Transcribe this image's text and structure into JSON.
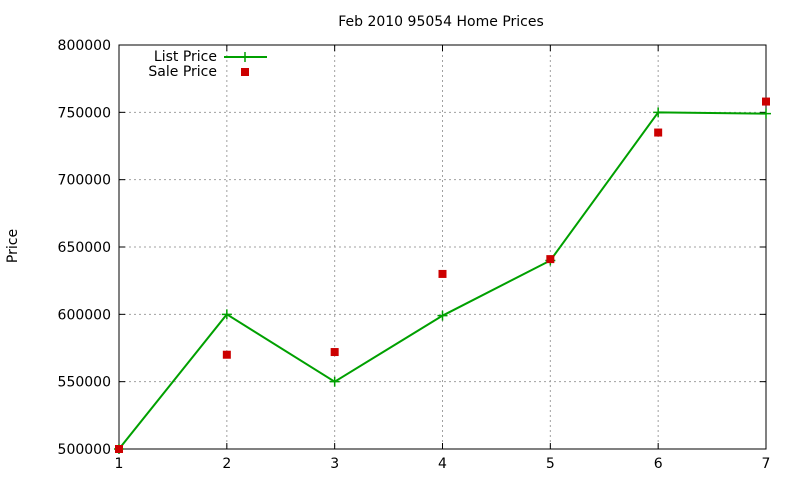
{
  "chart_data": {
    "type": "line",
    "title": "Feb 2010 95054 Home Prices",
    "ylabel": "Price",
    "xlabel": "",
    "x": [
      1,
      2,
      3,
      4,
      5,
      6,
      7
    ],
    "xlim": [
      1,
      7
    ],
    "ylim": [
      500000,
      800000
    ],
    "xticks": [
      1,
      2,
      3,
      4,
      5,
      6,
      7
    ],
    "yticks": [
      500000,
      550000,
      600000,
      650000,
      700000,
      750000,
      800000
    ],
    "grid": true,
    "legend_position": "top-left",
    "series": [
      {
        "name": "List Price",
        "style": "line-with-plus-markers",
        "color": "#00a000",
        "values": [
          500000,
          600000,
          550000,
          599000,
          640000,
          750000,
          749000
        ]
      },
      {
        "name": "Sale Price",
        "style": "square-markers",
        "color": "#cc0000",
        "values": [
          500000,
          570000,
          572000,
          630000,
          641000,
          735000,
          758000
        ]
      }
    ]
  }
}
